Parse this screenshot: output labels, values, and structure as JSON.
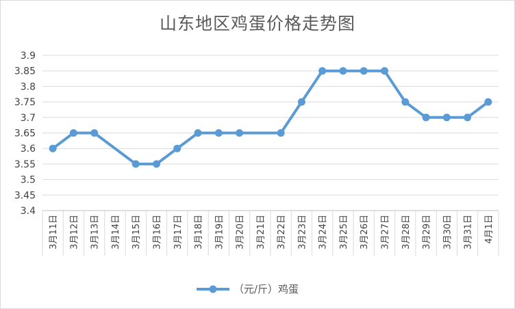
{
  "chart_data": {
    "type": "line",
    "title": "山东地区鸡蛋价格走势图",
    "categories": [
      "3月11日",
      "3月12日",
      "3月13日",
      "3月14日",
      "3月15日",
      "3月16日",
      "3月17日",
      "3月18日",
      "3月19日",
      "3月20日",
      "3月21日",
      "3月22日",
      "3月23日",
      "3月24日",
      "3月25日",
      "3月26日",
      "3月27日",
      "3月28日",
      "3月29日",
      "3月30日",
      "3月31日",
      "4月1日"
    ],
    "series": [
      {
        "name": "（元/斤）鸡蛋",
        "color": "#5b9bd5",
        "points": [
          {
            "x": "3月11日",
            "y": 3.6
          },
          {
            "x": "3月12日",
            "y": 3.65
          },
          {
            "x": "3月13日",
            "y": 3.65
          },
          {
            "x": "3月15日",
            "y": 3.55
          },
          {
            "x": "3月16日",
            "y": 3.55
          },
          {
            "x": "3月17日",
            "y": 3.6
          },
          {
            "x": "3月18日",
            "y": 3.65
          },
          {
            "x": "3月19日",
            "y": 3.65
          },
          {
            "x": "3月20日",
            "y": 3.65
          },
          {
            "x": "3月22日",
            "y": 3.65
          },
          {
            "x": "3月23日",
            "y": 3.75
          },
          {
            "x": "3月24日",
            "y": 3.85
          },
          {
            "x": "3月25日",
            "y": 3.85
          },
          {
            "x": "3月26日",
            "y": 3.85
          },
          {
            "x": "3月27日",
            "y": 3.85
          },
          {
            "x": "3月28日",
            "y": 3.75
          },
          {
            "x": "3月29日",
            "y": 3.7
          },
          {
            "x": "3月30日",
            "y": 3.7
          },
          {
            "x": "3月31日",
            "y": 3.7
          },
          {
            "x": "4月1日",
            "y": 3.75
          }
        ]
      }
    ],
    "y_ticks": [
      "3.4",
      "3.45",
      "3.5",
      "3.55",
      "3.6",
      "3.65",
      "3.7",
      "3.75",
      "3.8",
      "3.85",
      "3.9"
    ],
    "ylim": [
      3.4,
      3.9
    ],
    "grid": true,
    "legend_position": "bottom"
  }
}
